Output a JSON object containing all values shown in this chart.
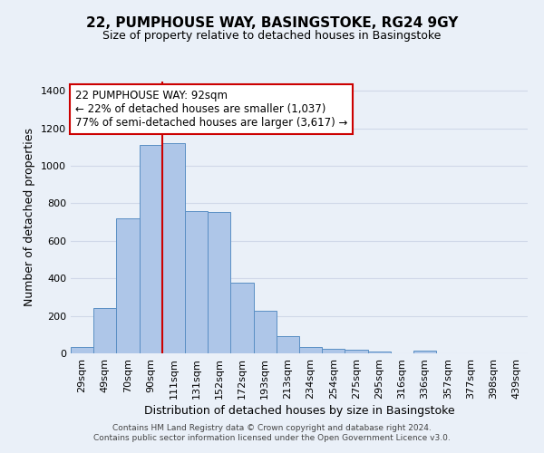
{
  "title": "22, PUMPHOUSE WAY, BASINGSTOKE, RG24 9GY",
  "subtitle": "Size of property relative to detached houses in Basingstoke",
  "xlabel": "Distribution of detached houses by size in Basingstoke",
  "ylabel": "Number of detached properties",
  "categories": [
    "29sqm",
    "49sqm",
    "70sqm",
    "90sqm",
    "111sqm",
    "131sqm",
    "152sqm",
    "172sqm",
    "193sqm",
    "213sqm",
    "234sqm",
    "254sqm",
    "275sqm",
    "295sqm",
    "316sqm",
    "336sqm",
    "357sqm",
    "377sqm",
    "398sqm",
    "439sqm"
  ],
  "values": [
    35,
    240,
    720,
    1110,
    1120,
    760,
    755,
    375,
    225,
    90,
    35,
    25,
    20,
    12,
    0,
    15,
    0,
    0,
    0,
    0
  ],
  "bar_color": "#aec6e8",
  "bar_edge_color": "#5a8fc4",
  "grid_color": "#d0d8e8",
  "background_color": "#eaf0f8",
  "red_line_x": 3.5,
  "annotation_text": "22 PUMPHOUSE WAY: 92sqm\n← 22% of detached houses are smaller (1,037)\n77% of semi-detached houses are larger (3,617) →",
  "annotation_box_color": "#ffffff",
  "annotation_border_color": "#cc0000",
  "footer": "Contains HM Land Registry data © Crown copyright and database right 2024.\nContains public sector information licensed under the Open Government Licence v3.0.",
  "ylim": [
    0,
    1450
  ],
  "yticks": [
    0,
    200,
    400,
    600,
    800,
    1000,
    1200,
    1400
  ],
  "title_fontsize": 11,
  "subtitle_fontsize": 9,
  "ylabel_fontsize": 9,
  "xlabel_fontsize": 9,
  "tick_fontsize": 8,
  "footer_fontsize": 6.5,
  "annotation_fontsize": 8.5
}
